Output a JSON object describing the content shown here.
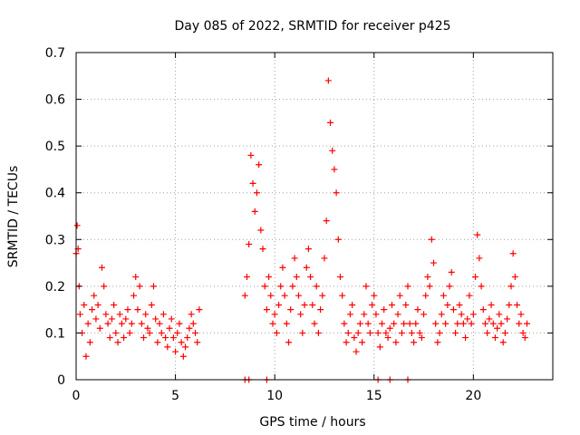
{
  "chart_data": {
    "type": "scatter",
    "title": "Day 085 of 2022, SRMTID for receiver p425",
    "xlabel": "GPS time / hours",
    "ylabel": "SRMTID / TECUs",
    "xlim": [
      0,
      24
    ],
    "ylim": [
      0,
      0.7
    ],
    "xticks": [
      0,
      5,
      10,
      15,
      20
    ],
    "yticks": [
      0,
      0.1,
      0.2,
      0.3,
      0.4,
      0.5,
      0.6,
      0.7
    ],
    "grid": true,
    "marker": "plus",
    "series": [
      {
        "name": "SRMTID",
        "color": "#ff0000",
        "x": [
          0.0,
          0.05,
          0.1,
          0.15,
          0.2,
          0.3,
          0.4,
          0.5,
          0.6,
          0.7,
          0.8,
          0.9,
          1.0,
          1.1,
          1.2,
          1.3,
          1.4,
          1.5,
          1.6,
          1.7,
          1.8,
          1.9,
          2.0,
          2.1,
          2.2,
          2.3,
          2.4,
          2.5,
          2.6,
          2.7,
          2.8,
          2.9,
          3.0,
          3.1,
          3.2,
          3.3,
          3.4,
          3.5,
          3.6,
          3.7,
          3.8,
          3.9,
          4.0,
          4.1,
          4.2,
          4.3,
          4.4,
          4.5,
          4.6,
          4.7,
          4.8,
          4.9,
          5.0,
          5.1,
          5.2,
          5.3,
          5.4,
          5.5,
          5.6,
          5.7,
          5.8,
          5.9,
          6.0,
          6.1,
          6.2,
          8.5,
          8.6,
          8.7,
          8.8,
          8.9,
          9.0,
          9.1,
          9.2,
          9.3,
          9.4,
          9.5,
          9.6,
          9.7,
          9.8,
          9.9,
          10.0,
          10.1,
          10.2,
          10.3,
          10.4,
          10.5,
          10.6,
          10.7,
          10.8,
          10.9,
          11.0,
          11.1,
          11.2,
          11.3,
          11.4,
          11.5,
          11.6,
          11.7,
          11.8,
          11.9,
          12.0,
          12.1,
          12.2,
          12.3,
          12.4,
          12.5,
          12.6,
          12.7,
          12.8,
          12.9,
          13.0,
          13.1,
          13.2,
          13.3,
          13.4,
          13.5,
          13.6,
          13.7,
          13.8,
          13.9,
          14.0,
          14.1,
          14.2,
          14.3,
          14.4,
          14.5,
          14.6,
          14.7,
          14.8,
          14.9,
          15.0,
          15.1,
          15.2,
          15.3,
          15.4,
          15.5,
          15.6,
          15.7,
          15.8,
          15.9,
          16.0,
          16.1,
          16.2,
          16.3,
          16.4,
          16.5,
          16.6,
          16.7,
          16.8,
          16.9,
          17.0,
          17.1,
          17.2,
          17.3,
          17.4,
          17.5,
          17.6,
          17.7,
          17.8,
          17.9,
          18.0,
          18.1,
          18.2,
          18.3,
          18.4,
          18.5,
          18.6,
          18.7,
          18.8,
          18.9,
          19.0,
          19.1,
          19.2,
          19.3,
          19.4,
          19.5,
          19.6,
          19.7,
          19.8,
          19.9,
          20.0,
          20.1,
          20.2,
          20.3,
          20.4,
          20.5,
          20.6,
          20.7,
          20.8,
          20.9,
          21.0,
          21.1,
          21.2,
          21.3,
          21.4,
          21.5,
          21.6,
          21.7,
          21.8,
          21.9,
          22.0,
          22.1,
          22.2,
          22.3,
          22.4,
          22.5,
          22.6,
          22.7,
          8.5,
          8.7,
          9.6,
          15.2,
          15.8,
          16.7
        ],
        "y": [
          0.27,
          0.33,
          0.28,
          0.2,
          0.14,
          0.1,
          0.16,
          0.05,
          0.12,
          0.08,
          0.15,
          0.18,
          0.13,
          0.16,
          0.11,
          0.24,
          0.2,
          0.14,
          0.12,
          0.09,
          0.13,
          0.16,
          0.1,
          0.08,
          0.14,
          0.12,
          0.09,
          0.13,
          0.15,
          0.1,
          0.12,
          0.18,
          0.22,
          0.15,
          0.2,
          0.12,
          0.09,
          0.14,
          0.11,
          0.1,
          0.16,
          0.2,
          0.13,
          0.08,
          0.12,
          0.1,
          0.14,
          0.09,
          0.07,
          0.11,
          0.13,
          0.09,
          0.06,
          0.1,
          0.12,
          0.08,
          0.05,
          0.07,
          0.09,
          0.11,
          0.14,
          0.12,
          0.1,
          0.08,
          0.15,
          0.18,
          0.22,
          0.29,
          0.48,
          0.42,
          0.36,
          0.4,
          0.46,
          0.32,
          0.28,
          0.2,
          0.15,
          0.22,
          0.18,
          0.12,
          0.14,
          0.1,
          0.16,
          0.2,
          0.24,
          0.18,
          0.12,
          0.08,
          0.15,
          0.2,
          0.26,
          0.22,
          0.18,
          0.14,
          0.1,
          0.16,
          0.24,
          0.28,
          0.22,
          0.16,
          0.12,
          0.2,
          0.1,
          0.15,
          0.18,
          0.26,
          0.34,
          0.64,
          0.55,
          0.49,
          0.45,
          0.4,
          0.3,
          0.22,
          0.18,
          0.12,
          0.08,
          0.1,
          0.14,
          0.16,
          0.09,
          0.06,
          0.1,
          0.12,
          0.08,
          0.14,
          0.2,
          0.12,
          0.1,
          0.16,
          0.18,
          0.14,
          0.1,
          0.07,
          0.12,
          0.15,
          0.1,
          0.09,
          0.11,
          0.16,
          0.12,
          0.08,
          0.14,
          0.18,
          0.1,
          0.12,
          0.16,
          0.2,
          0.12,
          0.1,
          0.08,
          0.12,
          0.15,
          0.1,
          0.09,
          0.14,
          0.18,
          0.22,
          0.2,
          0.3,
          0.25,
          0.12,
          0.08,
          0.1,
          0.14,
          0.18,
          0.12,
          0.16,
          0.2,
          0.23,
          0.15,
          0.1,
          0.12,
          0.16,
          0.14,
          0.12,
          0.09,
          0.13,
          0.18,
          0.12,
          0.14,
          0.22,
          0.31,
          0.26,
          0.2,
          0.15,
          0.12,
          0.1,
          0.13,
          0.16,
          0.12,
          0.09,
          0.11,
          0.14,
          0.12,
          0.08,
          0.1,
          0.13,
          0.16,
          0.2,
          0.27,
          0.22,
          0.16,
          0.12,
          0.14,
          0.1,
          0.09,
          0.12,
          0.0,
          0.0,
          0.0,
          0.0,
          0.0,
          0.0
        ]
      }
    ]
  }
}
